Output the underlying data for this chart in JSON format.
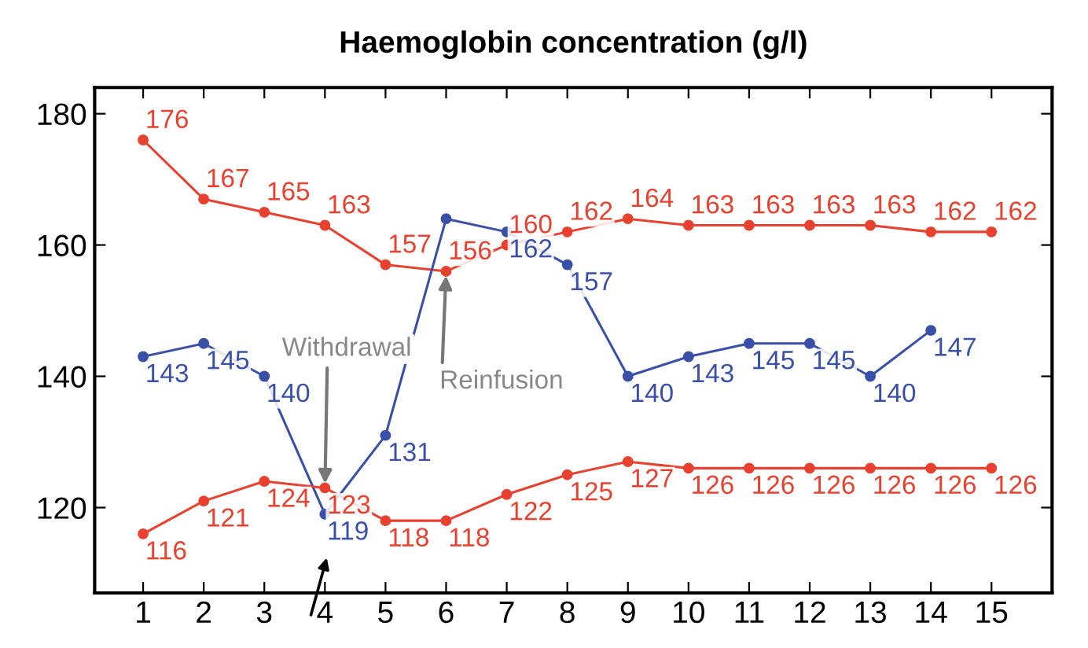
{
  "chart_data": {
    "type": "line",
    "title": "Haemoglobin concentration (g/l)",
    "x": [
      1,
      2,
      3,
      4,
      5,
      6,
      7,
      8,
      9,
      10,
      11,
      12,
      13,
      14,
      15
    ],
    "series": [
      {
        "color": "#e8412f",
        "values": [
          176,
          167,
          165,
          163,
          157,
          156,
          160,
          162,
          164,
          163,
          163,
          163,
          163,
          162,
          162
        ],
        "value_labels": [
          "176",
          "167",
          "165",
          "163",
          "157",
          "156",
          "160",
          "162",
          "164",
          "163",
          "163",
          "163",
          "163",
          "162",
          "162"
        ]
      },
      {
        "color": "#3a4fa8",
        "values": [
          143,
          145,
          140,
          119,
          131,
          164,
          162,
          157,
          140,
          143,
          145,
          145,
          140,
          147,
          null
        ],
        "value_labels": [
          "143",
          "145",
          "140",
          "119",
          "131",
          null,
          "162",
          "157",
          "140",
          "143",
          "145",
          "145",
          "140",
          "147",
          null
        ]
      },
      {
        "color": "#e8412f",
        "values": [
          116,
          121,
          124,
          123,
          118,
          118,
          122,
          125,
          127,
          126,
          126,
          126,
          126,
          126,
          126
        ],
        "value_labels": [
          "116",
          "121",
          "124",
          "123",
          "118",
          "118",
          "122",
          "125",
          "127",
          "126",
          "126",
          "126",
          "126",
          "126",
          "126"
        ]
      }
    ],
    "xlim": [
      0.2,
      16.0
    ],
    "ylim": [
      107,
      184
    ],
    "xticks": [
      1,
      2,
      3,
      4,
      5,
      6,
      7,
      8,
      9,
      10,
      11,
      12,
      13,
      14,
      15
    ],
    "yticks": [
      120,
      140,
      160,
      180
    ],
    "marker": "circle",
    "line_style": "solid",
    "grid": false,
    "legend": false,
    "annotations": [
      {
        "text": "Withdrawal",
        "x": 4,
        "y": 123
      },
      {
        "text": "Reinfusion",
        "x": 6,
        "y": 156
      }
    ]
  }
}
